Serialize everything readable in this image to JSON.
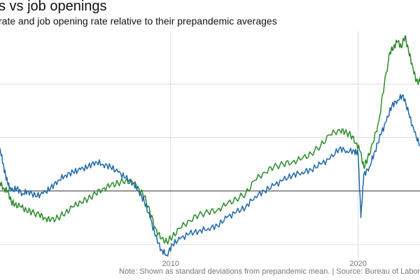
{
  "chart_data": {
    "type": "line",
    "title": "s vs job openings",
    "subtitle": "rate and job opening rate relative to their prepandemic averages",
    "note": "Note: Shown as standard deviations from prepandemic mean. | Source: Bureau of Labor",
    "x_tick_labels": [
      "2010",
      "2020"
    ],
    "xlim": [
      2000.9,
      2023.3
    ],
    "ylim": [
      -1.3,
      3.0
    ],
    "grid": true,
    "baseline": 0,
    "colors": {
      "green_series": "#2a8a2a",
      "blue_series": "#1f68a8",
      "baseline": "#444444",
      "grid": "#dddddd"
    },
    "series": [
      {
        "key": "green",
        "points": [
          [
            2000.9,
            0.15
          ],
          [
            2001.1,
            0.05
          ],
          [
            2001.3,
            0.0
          ],
          [
            2001.5,
            -0.2
          ],
          [
            2001.7,
            -0.25
          ],
          [
            2002.0,
            -0.3
          ],
          [
            2002.3,
            -0.35
          ],
          [
            2002.6,
            -0.4
          ],
          [
            2003.0,
            -0.45
          ],
          [
            2003.3,
            -0.5
          ],
          [
            2003.6,
            -0.55
          ],
          [
            2004.0,
            -0.5
          ],
          [
            2004.4,
            -0.4
          ],
          [
            2004.8,
            -0.3
          ],
          [
            2005.2,
            -0.2
          ],
          [
            2005.6,
            -0.15
          ],
          [
            2006.0,
            -0.05
          ],
          [
            2006.4,
            0.05
          ],
          [
            2006.8,
            0.1
          ],
          [
            2007.2,
            0.15
          ],
          [
            2007.6,
            0.2
          ],
          [
            2008.0,
            0.15
          ],
          [
            2008.3,
            0.05
          ],
          [
            2008.6,
            -0.1
          ],
          [
            2008.9,
            -0.4
          ],
          [
            2009.2,
            -0.7
          ],
          [
            2009.5,
            -0.9
          ],
          [
            2009.8,
            -0.95
          ],
          [
            2010.1,
            -0.85
          ],
          [
            2010.5,
            -0.7
          ],
          [
            2011.0,
            -0.55
          ],
          [
            2011.5,
            -0.45
          ],
          [
            2012.0,
            -0.4
          ],
          [
            2012.5,
            -0.35
          ],
          [
            2013.0,
            -0.25
          ],
          [
            2013.5,
            -0.15
          ],
          [
            2014.0,
            -0.05
          ],
          [
            2014.5,
            0.2
          ],
          [
            2015.0,
            0.35
          ],
          [
            2015.5,
            0.45
          ],
          [
            2016.0,
            0.5
          ],
          [
            2016.5,
            0.55
          ],
          [
            2017.0,
            0.6
          ],
          [
            2017.5,
            0.7
          ],
          [
            2018.0,
            0.85
          ],
          [
            2018.5,
            1.05
          ],
          [
            2019.0,
            1.15
          ],
          [
            2019.3,
            1.1
          ],
          [
            2019.6,
            1.05
          ],
          [
            2019.9,
            0.9
          ],
          [
            2020.1,
            0.75
          ],
          [
            2020.3,
            0.45
          ],
          [
            2020.5,
            0.6
          ],
          [
            2020.8,
            0.9
          ],
          [
            2021.1,
            1.3
          ],
          [
            2021.4,
            2.0
          ],
          [
            2021.7,
            2.6
          ],
          [
            2021.9,
            2.7
          ],
          [
            2022.1,
            2.8
          ],
          [
            2022.3,
            2.7
          ],
          [
            2022.5,
            2.9
          ],
          [
            2022.7,
            2.6
          ],
          [
            2022.9,
            2.35
          ],
          [
            2023.1,
            2.05
          ],
          [
            2023.3,
            2.05
          ]
        ]
      },
      {
        "key": "blue",
        "points": [
          [
            2000.9,
            0.8
          ],
          [
            2001.1,
            0.45
          ],
          [
            2001.3,
            0.15
          ],
          [
            2001.5,
            0.0
          ],
          [
            2001.8,
            0.05
          ],
          [
            2002.1,
            -0.05
          ],
          [
            2002.4,
            0.0
          ],
          [
            2002.8,
            -0.1
          ],
          [
            2003.2,
            -0.05
          ],
          [
            2003.6,
            0.05
          ],
          [
            2004.0,
            0.2
          ],
          [
            2004.4,
            0.3
          ],
          [
            2004.8,
            0.35
          ],
          [
            2005.2,
            0.4
          ],
          [
            2005.6,
            0.45
          ],
          [
            2006.0,
            0.55
          ],
          [
            2006.4,
            0.5
          ],
          [
            2006.8,
            0.45
          ],
          [
            2007.2,
            0.35
          ],
          [
            2007.6,
            0.25
          ],
          [
            2008.0,
            0.15
          ],
          [
            2008.3,
            0.0
          ],
          [
            2008.6,
            -0.2
          ],
          [
            2008.9,
            -0.5
          ],
          [
            2009.2,
            -0.85
          ],
          [
            2009.5,
            -1.1
          ],
          [
            2009.8,
            -1.2
          ],
          [
            2010.1,
            -1.0
          ],
          [
            2010.5,
            -0.9
          ],
          [
            2011.0,
            -0.8
          ],
          [
            2011.5,
            -0.75
          ],
          [
            2012.0,
            -0.7
          ],
          [
            2012.5,
            -0.65
          ],
          [
            2013.0,
            -0.5
          ],
          [
            2013.5,
            -0.4
          ],
          [
            2014.0,
            -0.3
          ],
          [
            2014.5,
            -0.1
          ],
          [
            2015.0,
            0.0
          ],
          [
            2015.5,
            0.1
          ],
          [
            2016.0,
            0.2
          ],
          [
            2016.5,
            0.3
          ],
          [
            2017.0,
            0.35
          ],
          [
            2017.5,
            0.4
          ],
          [
            2018.0,
            0.5
          ],
          [
            2018.5,
            0.6
          ],
          [
            2019.0,
            0.8
          ],
          [
            2019.4,
            0.75
          ],
          [
            2019.8,
            0.75
          ],
          [
            2020.0,
            0.7
          ],
          [
            2020.15,
            -0.5
          ],
          [
            2020.3,
            0.3
          ],
          [
            2020.6,
            0.45
          ],
          [
            2020.9,
            0.75
          ],
          [
            2021.2,
            1.05
          ],
          [
            2021.5,
            1.3
          ],
          [
            2021.8,
            1.6
          ],
          [
            2022.1,
            1.7
          ],
          [
            2022.4,
            1.8
          ],
          [
            2022.7,
            1.45
          ],
          [
            2023.0,
            1.1
          ],
          [
            2023.3,
            0.85
          ]
        ]
      }
    ]
  }
}
